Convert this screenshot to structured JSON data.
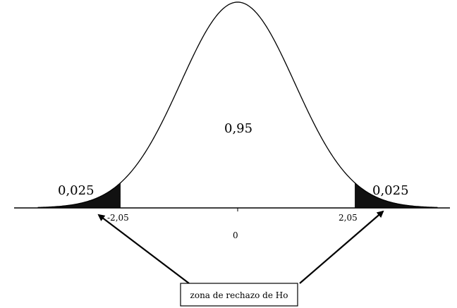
{
  "labels": {
    "center_area": "0,95",
    "left_tail_area": "0,025",
    "right_tail_area": "0,025",
    "left_critical": "-2,05",
    "right_critical": "2,05",
    "mean": "0",
    "rejection_zone": "zona de rechazo de Ho"
  },
  "distribution": {
    "mean": 0,
    "left_critical": -2.05,
    "right_critical": 2.05
  },
  "colors": {
    "ink": "#000000",
    "tail_fill": "#111111"
  }
}
